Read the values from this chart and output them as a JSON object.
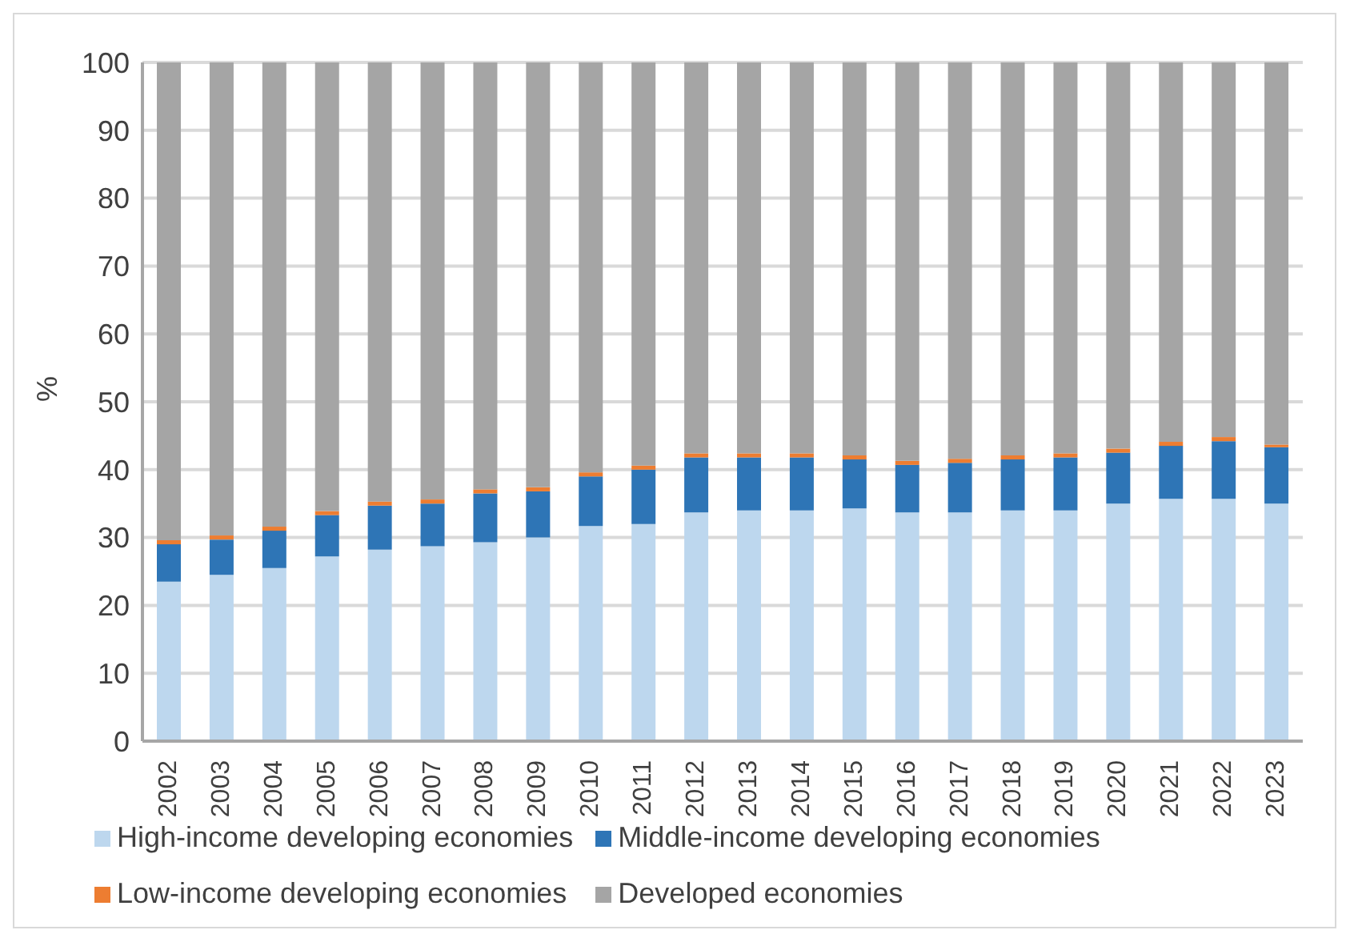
{
  "chart_data": {
    "type": "bar",
    "stacked": true,
    "ylabel": "%",
    "categories": [
      "2002",
      "2003",
      "2004",
      "2005",
      "2006",
      "2007",
      "2008",
      "2009",
      "2010",
      "2011",
      "2012",
      "2013",
      "2014",
      "2015",
      "2016",
      "2017",
      "2018",
      "2019",
      "2020",
      "2021",
      "2022",
      "2023"
    ],
    "series": [
      {
        "name": "High-income developing economies",
        "color": "#bdd7ee",
        "values": [
          23.5,
          24.5,
          25.5,
          27.2,
          28.2,
          28.7,
          29.3,
          30,
          31.7,
          32,
          33.7,
          34,
          34,
          34.3,
          33.7,
          33.7,
          34,
          34,
          35,
          35.7,
          35.7,
          35
        ]
      },
      {
        "name": "Middle-income developing economies",
        "color": "#2e75b6",
        "values": [
          5.5,
          5.2,
          5.5,
          6.1,
          6.5,
          6.3,
          7.2,
          6.8,
          7.3,
          8,
          8.1,
          7.8,
          7.8,
          7.2,
          7,
          7.3,
          7.5,
          7.8,
          7.5,
          7.8,
          8.5,
          8.3
        ]
      },
      {
        "name": "Low-income developing economies",
        "color": "#ed7d31",
        "values": [
          0.6,
          0.6,
          0.6,
          0.6,
          0.6,
          0.6,
          0.6,
          0.6,
          0.6,
          0.6,
          0.6,
          0.6,
          0.6,
          0.6,
          0.6,
          0.6,
          0.6,
          0.6,
          0.6,
          0.6,
          0.6,
          0.4
        ]
      },
      {
        "name": "Developed economies",
        "color": "#a5a5a5",
        "values": [
          70.4,
          69.7,
          68.4,
          66.1,
          64.7,
          64.4,
          62.9,
          62.6,
          60.4,
          59.4,
          57.6,
          57.6,
          57.6,
          57.9,
          58.7,
          58.4,
          57.9,
          57.6,
          56.9,
          55.9,
          55.2,
          56.3
        ]
      }
    ],
    "ylim": [
      0,
      100
    ],
    "yticks": [
      0,
      10,
      20,
      30,
      40,
      50,
      60,
      70,
      80,
      90,
      100
    ],
    "grid": "y",
    "legend": "bottom"
  }
}
